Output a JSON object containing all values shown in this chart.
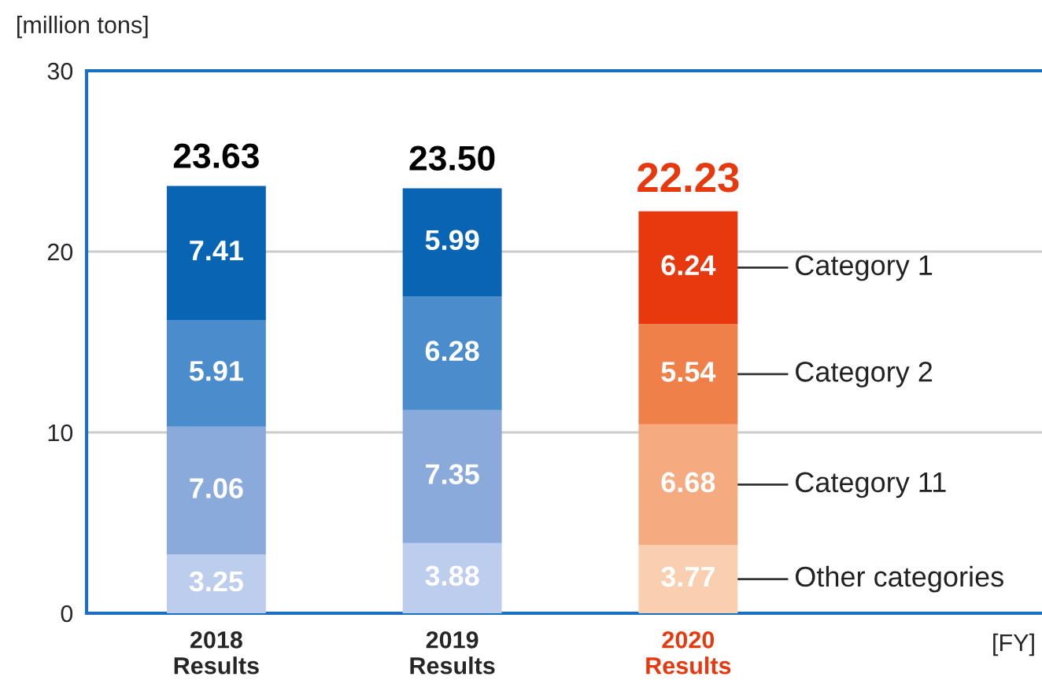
{
  "chart_data": {
    "type": "bar",
    "stacked": true,
    "ylabel": "[million tons]",
    "annotations": [
      "[FY]"
    ],
    "categories": [
      "2018\nResults",
      "2019\nResults",
      "2020\nResults"
    ],
    "series": [
      {
        "name": "Other categories",
        "colors": [
          "#bccdee",
          "#bccdee",
          "#f9cfb0"
        ],
        "values": [
          3.25,
          3.88,
          3.77
        ]
      },
      {
        "name": "Category 11",
        "colors": [
          "#8aaadc",
          "#8aaadc",
          "#f5aa80"
        ],
        "values": [
          7.06,
          7.35,
          6.68
        ]
      },
      {
        "name": "Category 2",
        "colors": [
          "#4a8ccc",
          "#4a8ccc",
          "#f0804a"
        ],
        "values": [
          5.91,
          6.28,
          5.54
        ]
      },
      {
        "name": "Category 1",
        "colors": [
          "#0a64b4",
          "#0a64b4",
          "#e8380d"
        ],
        "values": [
          7.41,
          5.99,
          6.24
        ]
      }
    ],
    "totals": [
      "23.63",
      "23.50",
      "22.23"
    ],
    "ylim": [
      0,
      30
    ],
    "yticks": [
      0,
      10,
      20,
      30
    ],
    "grid": "y",
    "data_labels": true,
    "legend": "right"
  }
}
